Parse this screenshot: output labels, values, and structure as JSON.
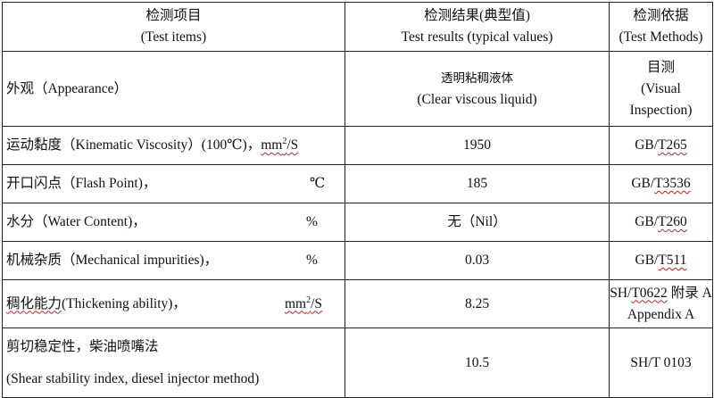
{
  "header": {
    "items_cn": "检测项目",
    "items_en": "(Test items)",
    "results_cn": "检测结果(典型值)",
    "results_en": "Test results (typical values)",
    "methods_cn": "检测依据",
    "methods_en": "(Test Methods)"
  },
  "rows": [
    {
      "property": "外观（Appearance）",
      "unit": "",
      "result_cn": "透明粘稠液体",
      "result_en": "(Clear viscous liquid)",
      "method_cn": "目测",
      "method_en1": "(Visual",
      "method_en2": "Inspection)"
    },
    {
      "property": "运动黏度（Kinematic Viscosity）(100℃)，",
      "unit_base": "mm",
      "unit_sup": "2",
      "unit_rest": "/S",
      "result": "1950",
      "method_prefix": "GB/",
      "method_sq": "T265"
    },
    {
      "property": "开口闪点（Flash Point)，",
      "unit": "℃",
      "result": "185",
      "method_prefix": "GB/",
      "method_sq": "T3536"
    },
    {
      "property": "水分（Water Content)，",
      "unit": "%",
      "result": "无（Nil）",
      "method_prefix": "GB/",
      "method_sq": "T260"
    },
    {
      "property": "机械杂质（Mechanical impurities)，",
      "unit": "%",
      "result": "0.03",
      "method_prefix": "GB/",
      "method_sq": "T511"
    },
    {
      "property_sq": "稠化能力",
      "property_rest": "(Thickening ability)，",
      "unit_base": "mm",
      "unit_sup": "2",
      "unit_rest": "/S",
      "result": "8.25",
      "method_line1_prefix": "SH/",
      "method_line1_sq": "T0622",
      "method_line1_suffix": " 附录 A",
      "method_line2": "Appendix A"
    },
    {
      "property_line1": "剪切稳定性，柴油喷嘴法",
      "property_line2": "(Shear stability index, diesel injector method)",
      "result": "10.5",
      "method": "SH/T 0103"
    }
  ]
}
